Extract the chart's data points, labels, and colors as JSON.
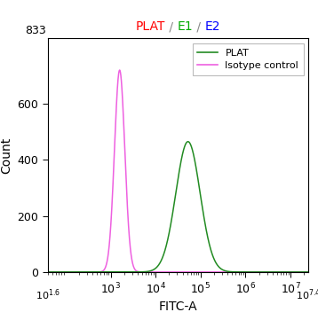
{
  "title_parts": [
    {
      "text": "PLAT",
      "color": "#ff0000"
    },
    {
      "text": " / ",
      "color": "#888888"
    },
    {
      "text": "E1",
      "color": "#00aa00"
    },
    {
      "text": " / ",
      "color": "#888888"
    },
    {
      "text": "E2",
      "color": "#0000ff"
    }
  ],
  "xlabel": "FITC-A",
  "ylabel": "Count",
  "ylim": [
    0,
    833
  ],
  "ymax_label": "833",
  "yticks": [
    0,
    200,
    400,
    600
  ],
  "xlog_min": 1.6,
  "xlog_max": 7.4,
  "xtick_positions": [
    3,
    4,
    5,
    6,
    7
  ],
  "pink_peak_log": 3.2,
  "pink_peak_height": 720,
  "pink_sigma_log": 0.115,
  "green_peak_log": 4.72,
  "green_peak_height": 465,
  "green_sigma_log": 0.27,
  "pink_color": "#ee60e0",
  "green_color": "#228B22",
  "legend_labels": [
    "PLAT",
    "Isotype control"
  ],
  "background_color": "#ffffff"
}
